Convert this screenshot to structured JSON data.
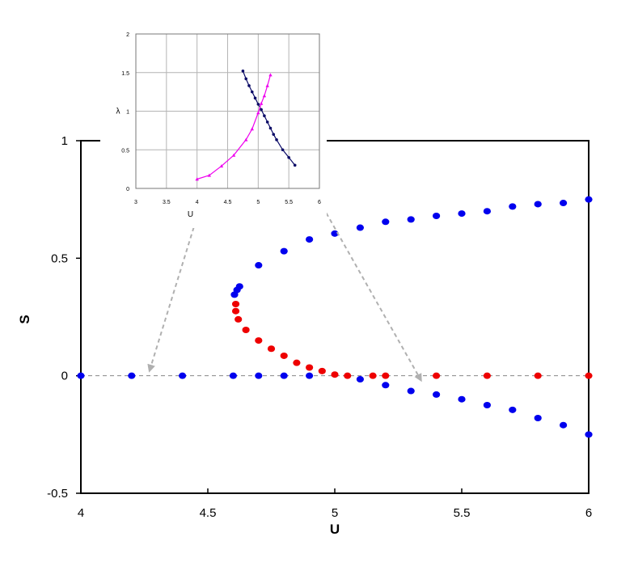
{
  "chart_data": [
    {
      "type": "scatter",
      "xlabel": "U",
      "ylabel": "S",
      "xlim": [
        4,
        6
      ],
      "ylim": [
        -0.5,
        1
      ],
      "xticks": [
        "4",
        "4.5",
        "5",
        "5.5",
        "6"
      ],
      "yticks": [
        "-0.5",
        "0",
        "0.5",
        "1"
      ],
      "grid": false,
      "legend": "none",
      "reference_line": {
        "y": 0,
        "style": "dashed",
        "color": "#888888"
      },
      "series": [
        {
          "color": "#0000ee",
          "points": [
            [
              4.0,
              0.0
            ],
            [
              4.2,
              0.0
            ],
            [
              4.4,
              0.0
            ],
            [
              4.6,
              0.0
            ],
            [
              4.7,
              0.0
            ],
            [
              4.8,
              0.0
            ],
            [
              4.9,
              0.0
            ],
            [
              4.605,
              0.345
            ],
            [
              4.615,
              0.365
            ],
            [
              4.625,
              0.38
            ],
            [
              4.7,
              0.47
            ],
            [
              4.8,
              0.53
            ],
            [
              4.9,
              0.58
            ],
            [
              5.0,
              0.605
            ],
            [
              5.1,
              0.63
            ],
            [
              5.2,
              0.655
            ],
            [
              5.3,
              0.665
            ],
            [
              5.4,
              0.68
            ],
            [
              5.5,
              0.69
            ],
            [
              5.6,
              0.7
            ],
            [
              5.7,
              0.72
            ],
            [
              5.8,
              0.73
            ],
            [
              5.9,
              0.735
            ],
            [
              6.0,
              0.75
            ],
            [
              5.1,
              -0.015
            ],
            [
              5.2,
              -0.04
            ],
            [
              5.3,
              -0.065
            ],
            [
              5.4,
              -0.08
            ],
            [
              5.5,
              -0.1
            ],
            [
              5.6,
              -0.125
            ],
            [
              5.7,
              -0.145
            ],
            [
              5.8,
              -0.18
            ],
            [
              5.9,
              -0.21
            ],
            [
              6.0,
              -0.25
            ]
          ]
        },
        {
          "color": "#ee0000",
          "points": [
            [
              4.61,
              0.305
            ],
            [
              4.61,
              0.275
            ],
            [
              4.62,
              0.24
            ],
            [
              4.65,
              0.195
            ],
            [
              4.7,
              0.15
            ],
            [
              4.75,
              0.115
            ],
            [
              4.8,
              0.085
            ],
            [
              4.85,
              0.055
            ],
            [
              4.9,
              0.035
            ],
            [
              4.95,
              0.02
            ],
            [
              5.0,
              0.005
            ],
            [
              5.05,
              0.0
            ],
            [
              5.15,
              0.0
            ],
            [
              5.2,
              0.0
            ],
            [
              5.4,
              0.0
            ],
            [
              5.6,
              0.0
            ],
            [
              5.8,
              0.0
            ],
            [
              6.0,
              0.0
            ]
          ]
        }
      ],
      "annotations": [
        {
          "type": "arrow",
          "style": "dashed",
          "color": "#b0b0b0",
          "from": [
            4.47,
            0.72
          ],
          "to": [
            4.27,
            0.02
          ]
        },
        {
          "type": "arrow",
          "style": "dashed",
          "color": "#b0b0b0",
          "from": [
            4.91,
            0.8
          ],
          "to": [
            5.34,
            -0.02
          ]
        }
      ]
    },
    {
      "type": "line",
      "xlabel": "U",
      "ylabel": "λ",
      "xlim": [
        3,
        6
      ],
      "ylim": [
        0,
        2
      ],
      "xticks": [
        "3",
        "3.5",
        "4",
        "4.5",
        "5",
        "5.5",
        "6"
      ],
      "yticks": [
        "0",
        "0.5",
        "1",
        "1.5",
        "2"
      ],
      "grid": true,
      "legend": "none",
      "series": [
        {
          "color": "#0a0a66",
          "markers": true,
          "x": [
            4.75,
            4.8,
            4.85,
            4.9,
            4.95,
            5.0,
            5.05,
            5.1,
            5.15,
            5.2,
            5.25,
            5.3,
            5.4,
            5.5,
            5.6
          ],
          "y": [
            1.52,
            1.42,
            1.33,
            1.25,
            1.17,
            1.09,
            1.02,
            0.94,
            0.86,
            0.78,
            0.7,
            0.63,
            0.5,
            0.4,
            0.3
          ]
        },
        {
          "color": "#ee00ee",
          "markers": true,
          "x": [
            4.0,
            4.2,
            4.4,
            4.6,
            4.8,
            4.9,
            5.0,
            5.05,
            5.1,
            5.15,
            5.2
          ],
          "y": [
            0.12,
            0.17,
            0.29,
            0.43,
            0.63,
            0.77,
            0.98,
            1.1,
            1.2,
            1.33,
            1.47
          ]
        }
      ]
    }
  ]
}
